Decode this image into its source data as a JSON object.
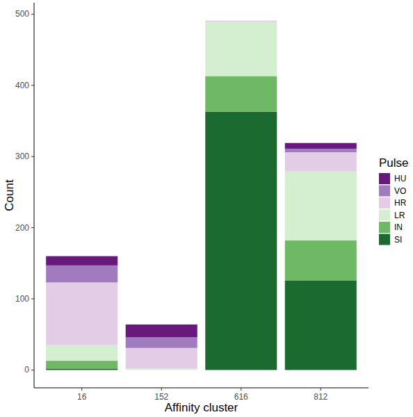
{
  "chart_data": {
    "type": "bar",
    "stacked": true,
    "x_label": "Affinity cluster",
    "y_label": "Count",
    "legend_title": "Pulse",
    "legend": "right",
    "categories": [
      "16",
      "152",
      "616",
      "812"
    ],
    "series": [
      {
        "name": "SI",
        "color": "#1b6b30",
        "values": [
          2,
          0,
          363,
          126
        ]
      },
      {
        "name": "IN",
        "color": "#6fb865",
        "values": [
          11,
          0,
          50,
          56
        ]
      },
      {
        "name": "LR",
        "color": "#d4eed0",
        "values": [
          22,
          2,
          76,
          97
        ]
      },
      {
        "name": "HR",
        "color": "#e3cce5",
        "values": [
          88,
          29,
          2,
          27
        ]
      },
      {
        "name": "VO",
        "color": "#a07cbe",
        "values": [
          24,
          15,
          0,
          5
        ]
      },
      {
        "name": "HU",
        "color": "#671a7c",
        "values": [
          13,
          18,
          0,
          8
        ]
      }
    ],
    "ylim": [
      -25,
      516
    ],
    "yticks": [
      0,
      100,
      200,
      300,
      400,
      500
    ],
    "grid": false
  }
}
